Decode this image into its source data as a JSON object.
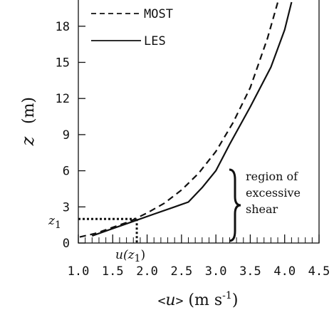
{
  "chart_data": {
    "type": "line",
    "xlabel_parts": [
      "<",
      "u",
      ">",
      " (m s",
      "-1",
      ")"
    ],
    "ylabel": "z",
    "ylabel_unit": "(m)",
    "xlim": [
      1.0,
      4.5
    ],
    "ylim": [
      0,
      20
    ],
    "xticks": [
      "1.0",
      "1.5",
      "2.0",
      "2.5",
      "3.0",
      "3.5",
      "4.0",
      "4.5"
    ],
    "yticks": [
      "0",
      "3",
      "6",
      "9",
      "12",
      "15",
      "18"
    ],
    "series": [
      {
        "name": "MOST",
        "style": "dashed",
        "x": [
          1.02,
          1.25,
          1.5,
          1.75,
          2.0,
          2.25,
          2.5,
          2.75,
          3.0,
          3.25,
          3.5,
          3.75,
          3.9
        ],
        "y": [
          0.5,
          0.8,
          1.3,
          1.8,
          2.5,
          3.3,
          4.4,
          5.8,
          7.6,
          10.0,
          12.9,
          17.0,
          20.0
        ]
      },
      {
        "name": "LES",
        "style": "solid",
        "x": [
          1.2,
          1.5,
          1.8,
          2.1,
          2.4,
          2.6,
          2.8,
          3.0,
          3.2,
          3.5,
          3.8,
          4.0,
          4.1
        ],
        "y": [
          0.6,
          1.2,
          1.8,
          2.4,
          3.0,
          3.4,
          4.6,
          6.0,
          8.2,
          11.3,
          14.6,
          17.7,
          20.0
        ]
      }
    ],
    "reference_point": {
      "x": 1.85,
      "y": 2.0,
      "x_label": "u(z",
      "x_label_sub": "1",
      "y_label": "z",
      "y_label_sub": "1"
    },
    "annotation": {
      "lines": [
        "region of",
        "excessive",
        "shear"
      ],
      "y_range": [
        0,
        6
      ]
    },
    "legend_placement": "top-left",
    "grid": false
  }
}
